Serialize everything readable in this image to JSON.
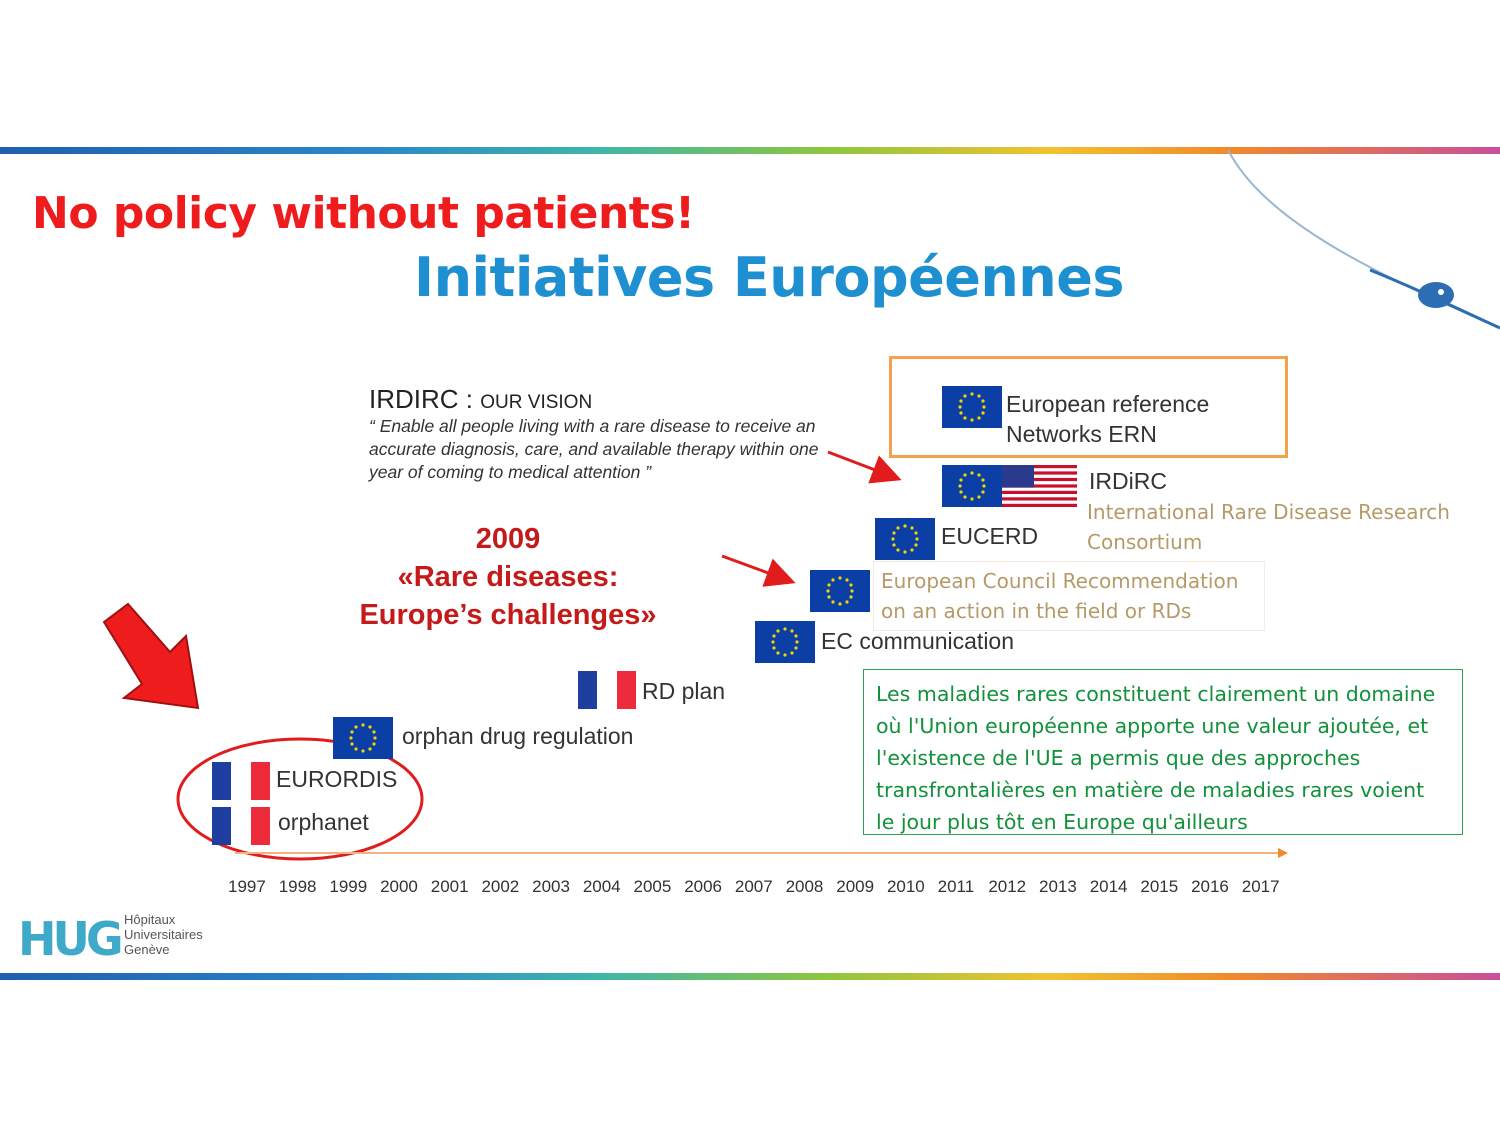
{
  "slide": {
    "title_main": "No policy without patients!",
    "title_sub": "Initiatives Européennes"
  },
  "vision": {
    "org": "IRDIRC",
    "separator": ":",
    "heading": "OUR VISION",
    "quote": "“ Enable all people living with a rare disease to receive an accurate diagnosis, care, and available therapy within one year of coming to medical attention ”"
  },
  "highlight": {
    "year": "2009",
    "line1": "«Rare diseases:",
    "line2": "Europe’s challenges»"
  },
  "milestones": {
    "ern_line1": "European reference",
    "ern_line2": "Networks ERN",
    "irdirc": "IRDiRC",
    "irdirc_full_line1": "International Rare Disease Research",
    "irdirc_full_line2": "Consortium",
    "eucerd": "EUCERD",
    "council_line1": "European Council Recommendation",
    "council_line2": "on an action in the field or RDs",
    "ec_communication": "EC communication",
    "rd_plan": "RD plan",
    "orphan_drug": "orphan drug regulation",
    "eurordis": "EURORDIS",
    "orphanet": "orphanet"
  },
  "callout": {
    "text": "Les maladies rares constituent clairement un domaine où l'Union européenne apporte une valeur ajoutée, et l'existence de l'UE a permis que des approches transfrontalières en matière de maladies rares voient le jour plus tôt en Europe qu'ailleurs"
  },
  "timeline": {
    "years": [
      "1997",
      "1998",
      "1999",
      "2000",
      "2001",
      "2002",
      "2003",
      "2004",
      "2005",
      "2006",
      "2007",
      "2008",
      "2009",
      "2010",
      "2011",
      "2012",
      "2013",
      "2014",
      "2015",
      "2016",
      "2017"
    ]
  },
  "logo": {
    "mark": "HUG",
    "line1": "Hôpitaux",
    "line2": "Universitaires",
    "line3": "Genève"
  },
  "colors": {
    "title_red": "#ee1c1c",
    "title_blue": "#1e8fd0",
    "eu_blue": "#0b3fa5",
    "callout_green": "#12913a",
    "ern_orange": "#f2a24a"
  }
}
